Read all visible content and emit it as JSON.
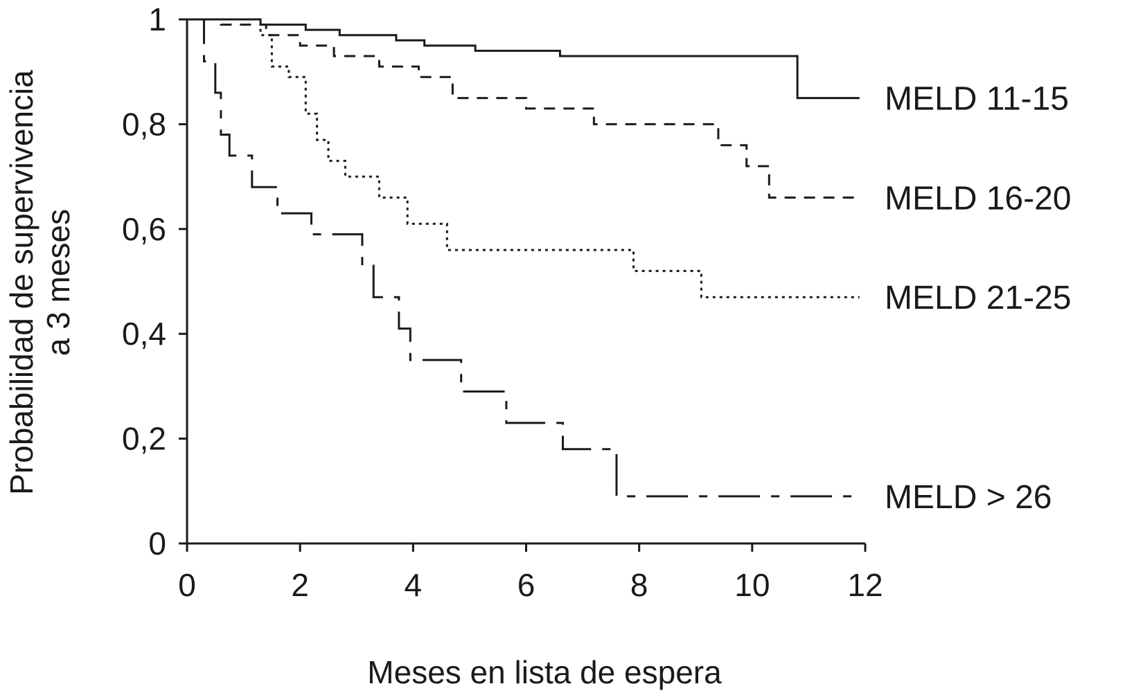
{
  "chart_data": {
    "type": "line",
    "title": "",
    "xlabel": "Meses en lista de espera",
    "ylabel_lines": [
      "Probabilidad de supervivencia",
      "a 3 meses"
    ],
    "xlim": [
      0,
      12
    ],
    "ylim": [
      0,
      1
    ],
    "x_ticks": [
      0,
      2,
      4,
      6,
      8,
      10,
      12
    ],
    "y_ticks": [
      0,
      0.2,
      0.4,
      0.6,
      0.8,
      1
    ],
    "y_tick_labels": [
      "0",
      "0,2",
      "0,4",
      "0,6",
      "0,8",
      "1"
    ],
    "x_tick_labels": [
      "0",
      "2",
      "4",
      "6",
      "8",
      "10",
      "12"
    ],
    "grid": false,
    "legend": "inline at right end of each curve",
    "series": [
      {
        "name": "MELD 11-15",
        "line_style": "solid",
        "points": [
          [
            0,
            1
          ],
          [
            1.3,
            1
          ],
          [
            1.3,
            0.99
          ],
          [
            2.1,
            0.99
          ],
          [
            2.1,
            0.98
          ],
          [
            2.7,
            0.98
          ],
          [
            2.7,
            0.97
          ],
          [
            3.7,
            0.97
          ],
          [
            3.7,
            0.96
          ],
          [
            4.2,
            0.96
          ],
          [
            4.2,
            0.95
          ],
          [
            5.1,
            0.95
          ],
          [
            5.1,
            0.94
          ],
          [
            6.6,
            0.94
          ],
          [
            6.6,
            0.93
          ],
          [
            10.8,
            0.93
          ],
          [
            10.8,
            0.85
          ],
          [
            11.9,
            0.85
          ]
        ]
      },
      {
        "name": "MELD 16-20",
        "line_style": "dashed",
        "points": [
          [
            0,
            1
          ],
          [
            0.6,
            1
          ],
          [
            0.6,
            0.99
          ],
          [
            1.4,
            0.99
          ],
          [
            1.4,
            0.97
          ],
          [
            2.0,
            0.97
          ],
          [
            2.0,
            0.95
          ],
          [
            2.6,
            0.95
          ],
          [
            2.6,
            0.93
          ],
          [
            3.4,
            0.93
          ],
          [
            3.4,
            0.91
          ],
          [
            4.1,
            0.91
          ],
          [
            4.1,
            0.89
          ],
          [
            4.7,
            0.89
          ],
          [
            4.7,
            0.85
          ],
          [
            6.0,
            0.85
          ],
          [
            6.0,
            0.83
          ],
          [
            7.2,
            0.83
          ],
          [
            7.2,
            0.8
          ],
          [
            9.4,
            0.8
          ],
          [
            9.4,
            0.76
          ],
          [
            9.9,
            0.76
          ],
          [
            9.9,
            0.72
          ],
          [
            10.3,
            0.72
          ],
          [
            10.3,
            0.66
          ],
          [
            11.9,
            0.66
          ]
        ]
      },
      {
        "name": "MELD 21-25",
        "line_style": "dotted",
        "points": [
          [
            0,
            1
          ],
          [
            1.3,
            1
          ],
          [
            1.3,
            0.97
          ],
          [
            1.5,
            0.97
          ],
          [
            1.5,
            0.91
          ],
          [
            1.8,
            0.91
          ],
          [
            1.8,
            0.89
          ],
          [
            2.1,
            0.89
          ],
          [
            2.1,
            0.82
          ],
          [
            2.3,
            0.82
          ],
          [
            2.3,
            0.77
          ],
          [
            2.5,
            0.77
          ],
          [
            2.5,
            0.73
          ],
          [
            2.8,
            0.73
          ],
          [
            2.8,
            0.7
          ],
          [
            3.4,
            0.7
          ],
          [
            3.4,
            0.66
          ],
          [
            3.9,
            0.66
          ],
          [
            3.9,
            0.61
          ],
          [
            4.6,
            0.61
          ],
          [
            4.6,
            0.56
          ],
          [
            7.9,
            0.56
          ],
          [
            7.9,
            0.52
          ],
          [
            9.1,
            0.52
          ],
          [
            9.1,
            0.47
          ],
          [
            11.9,
            0.47
          ]
        ]
      },
      {
        "name": "MELD > 26",
        "line_style": "dash-dot",
        "points": [
          [
            0,
            1
          ],
          [
            0.3,
            1
          ],
          [
            0.3,
            0.92
          ],
          [
            0.5,
            0.92
          ],
          [
            0.5,
            0.86
          ],
          [
            0.6,
            0.86
          ],
          [
            0.6,
            0.78
          ],
          [
            0.75,
            0.78
          ],
          [
            0.75,
            0.74
          ],
          [
            1.15,
            0.74
          ],
          [
            1.15,
            0.68
          ],
          [
            1.6,
            0.68
          ],
          [
            1.6,
            0.63
          ],
          [
            2.2,
            0.63
          ],
          [
            2.2,
            0.59
          ],
          [
            3.1,
            0.59
          ],
          [
            3.1,
            0.53
          ],
          [
            3.3,
            0.53
          ],
          [
            3.3,
            0.47
          ],
          [
            3.75,
            0.47
          ],
          [
            3.75,
            0.41
          ],
          [
            3.95,
            0.41
          ],
          [
            3.95,
            0.35
          ],
          [
            4.85,
            0.35
          ],
          [
            4.85,
            0.29
          ],
          [
            5.65,
            0.29
          ],
          [
            5.65,
            0.23
          ],
          [
            6.65,
            0.23
          ],
          [
            6.65,
            0.18
          ],
          [
            7.6,
            0.18
          ],
          [
            7.6,
            0.09
          ],
          [
            11.9,
            0.09
          ]
        ]
      }
    ]
  }
}
